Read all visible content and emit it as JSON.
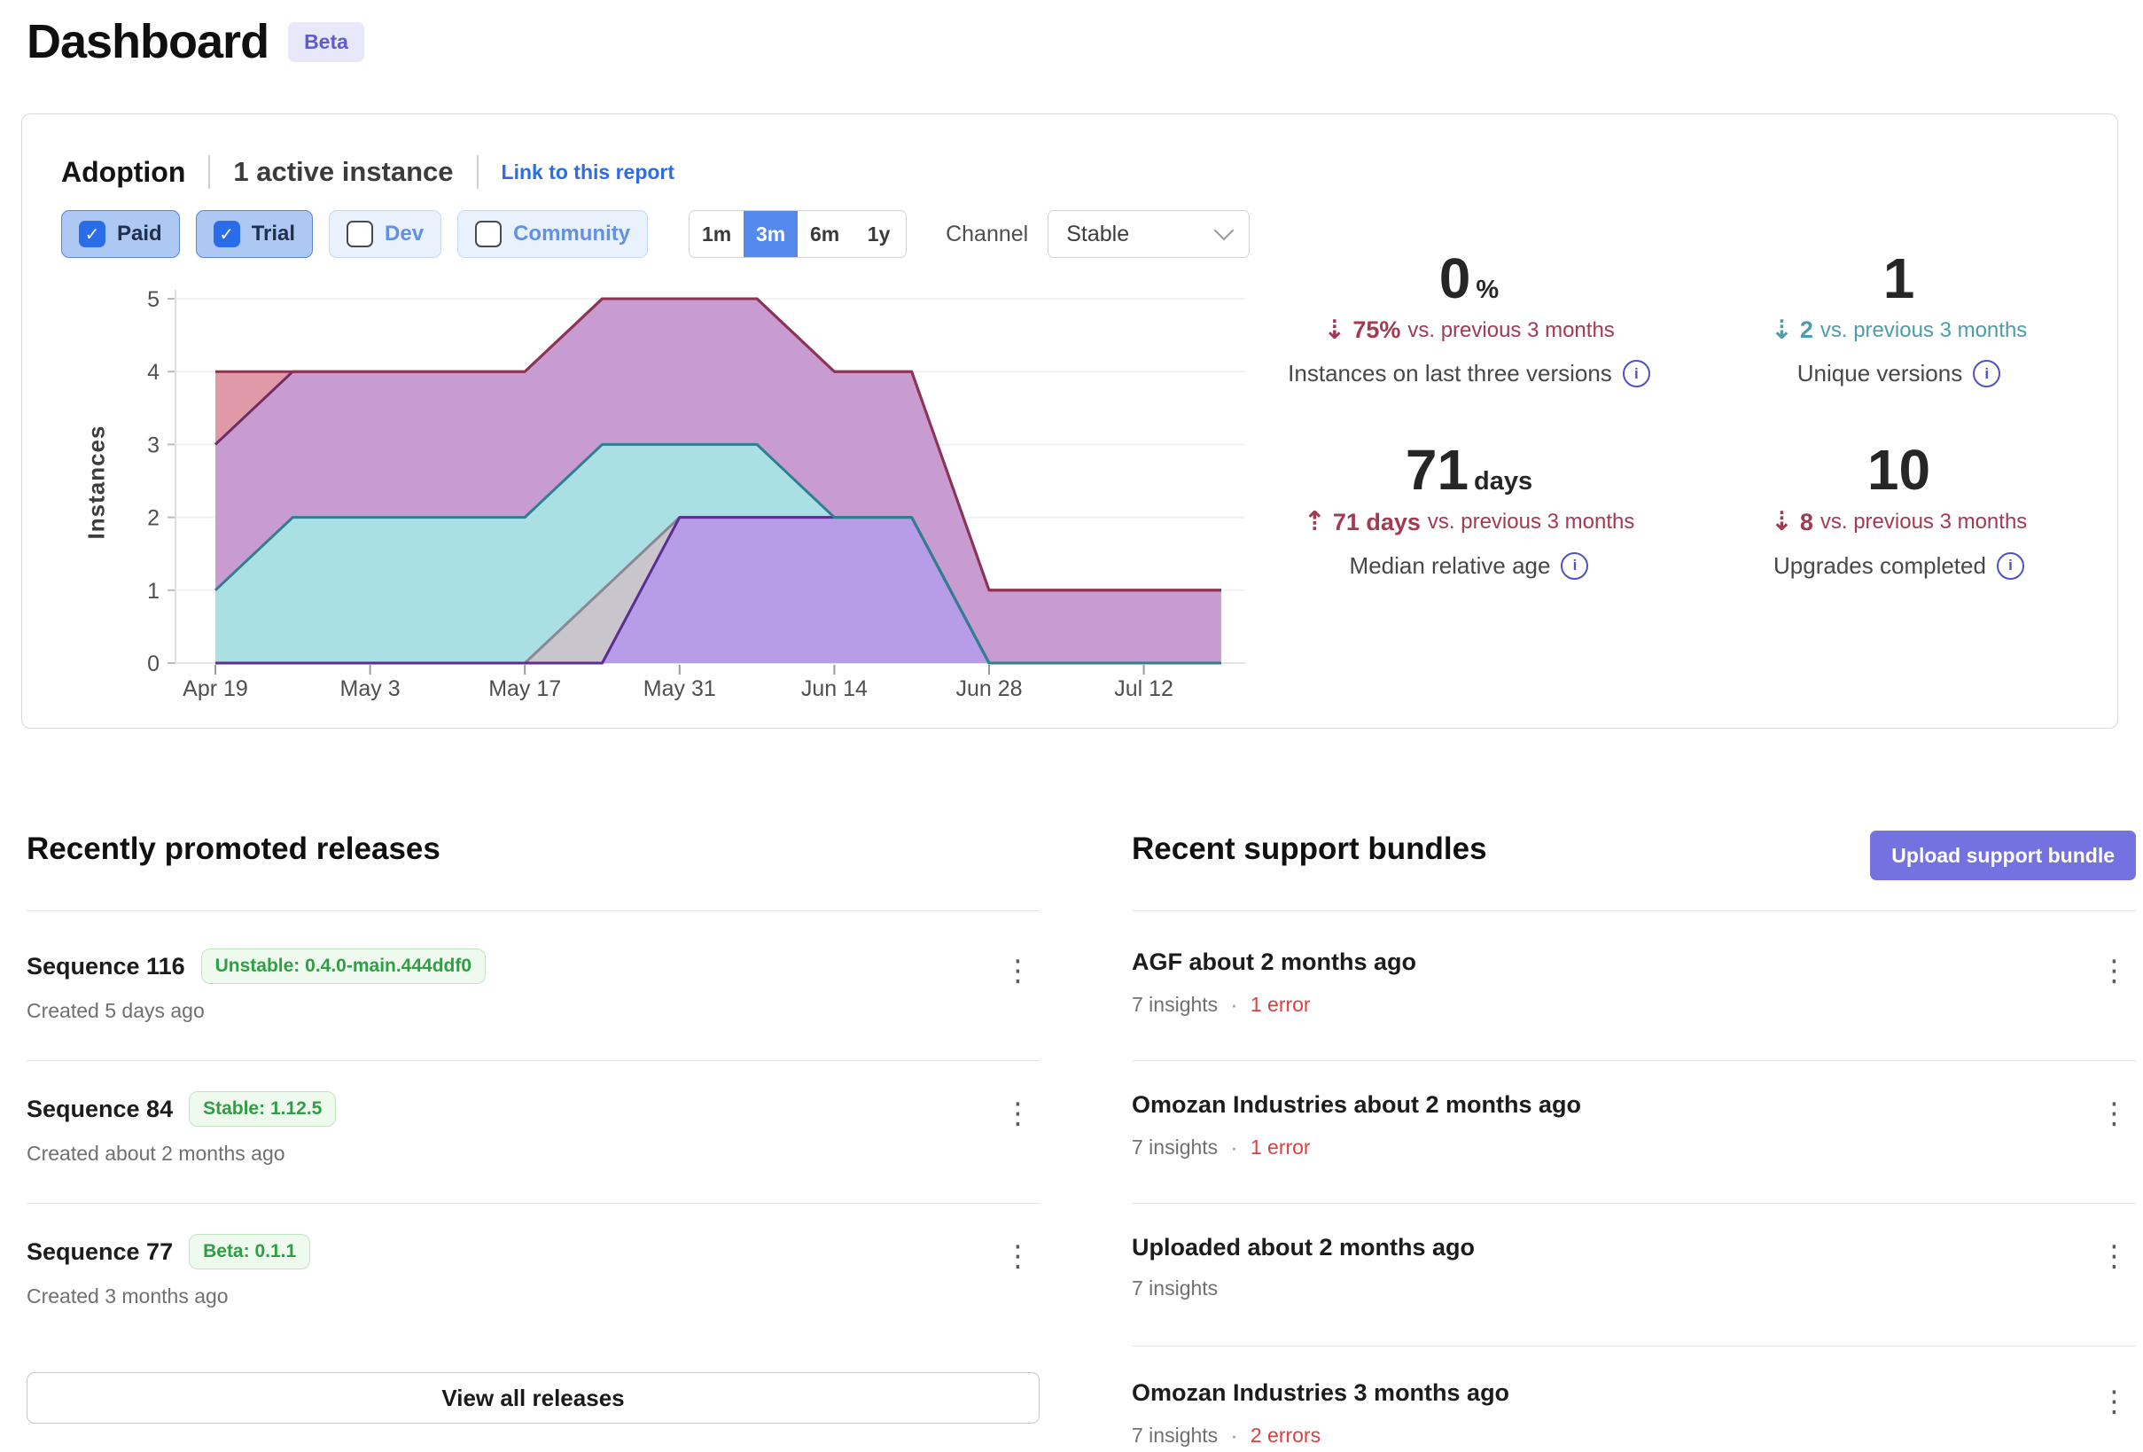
{
  "page": {
    "title": "Dashboard",
    "beta_badge": "Beta"
  },
  "adoption": {
    "title": "Adoption",
    "active_instances": "1 active instance",
    "report_link": "Link to this report",
    "filters": [
      {
        "label": "Paid",
        "checked": true
      },
      {
        "label": "Trial",
        "checked": true
      },
      {
        "label": "Dev",
        "checked": false
      },
      {
        "label": "Community",
        "checked": false
      }
    ],
    "time_ranges": {
      "options": [
        "1m",
        "3m",
        "6m",
        "1y"
      ],
      "selected": "3m"
    },
    "channel": {
      "label": "Channel",
      "value": "Stable"
    },
    "stats": [
      {
        "value": "0",
        "unit": "%",
        "delta_direction": "down",
        "delta": "75%",
        "delta_note": "vs. previous 3 months",
        "delta_color": "#a23a52",
        "label": "Instances on last three versions"
      },
      {
        "value": "1",
        "unit": "",
        "delta_direction": "down",
        "delta": "2",
        "delta_note": "vs. previous 3 months",
        "delta_color": "#4c9dab",
        "label": "Unique versions"
      },
      {
        "value": "71",
        "unit": "days",
        "delta_direction": "up",
        "delta": "71 days",
        "delta_note": "vs. previous 3 months",
        "delta_color": "#a23a52",
        "label": "Median relative age"
      },
      {
        "value": "10",
        "unit": "",
        "delta_direction": "down",
        "delta": "8",
        "delta_note": "vs. previous 3 months",
        "delta_color": "#a23a52",
        "label": "Upgrades completed"
      }
    ]
  },
  "chart_data": {
    "type": "area",
    "stacked": true,
    "title": "",
    "xlabel": "",
    "ylabel": "Instances",
    "ylim": [
      0,
      5
    ],
    "grid": true,
    "legend": "none",
    "x": [
      "Apr 19",
      "Apr 26",
      "May 3",
      "May 10",
      "May 17",
      "May 24",
      "May 31",
      "Jun 7",
      "Jun 14",
      "Jun 21",
      "Jun 28",
      "Jul 5",
      "Jul 12",
      "Jul 19"
    ],
    "x_tick_labels": [
      "Apr 19",
      "May 3",
      "May 17",
      "May 31",
      "Jun 14",
      "Jun 28",
      "Jul 12"
    ],
    "series": [
      {
        "name": "version-band-violet",
        "color": "#b79ce8",
        "line": "#5c2e91",
        "values": [
          0,
          0,
          0,
          0,
          0,
          0,
          2,
          2,
          2,
          2,
          0,
          0,
          0,
          0
        ]
      },
      {
        "name": "version-band-gray",
        "color": "#c9c5cd",
        "line": "#8b8795",
        "values": [
          0,
          0,
          0,
          0,
          0,
          1,
          0,
          0,
          0,
          0,
          0,
          0,
          0,
          0
        ]
      },
      {
        "name": "version-band-teal",
        "color": "#aadfe3",
        "line": "#2f808f",
        "values": [
          1,
          2,
          2,
          2,
          2,
          2,
          1,
          1,
          0,
          0,
          0,
          0,
          0,
          0
        ]
      },
      {
        "name": "version-band-mauve",
        "color": "#c89bd1",
        "line": "#702c68",
        "values": [
          2,
          2,
          2,
          2,
          2,
          2,
          2,
          2,
          2,
          2,
          1,
          1,
          1,
          1
        ]
      },
      {
        "name": "version-band-salmon",
        "color": "#e09aa7",
        "line": "#8e3352",
        "values": [
          1,
          0,
          0,
          0,
          0,
          0,
          0,
          0,
          0,
          0,
          0,
          0,
          0,
          0
        ]
      }
    ],
    "stroke_order": [
      1,
      0,
      2,
      3,
      4
    ]
  },
  "releases": {
    "heading": "Recently promoted releases",
    "items": [
      {
        "title": "Sequence 116",
        "badge": "Unstable: 0.4.0-main.444ddf0",
        "created": "Created 5 days ago"
      },
      {
        "title": "Sequence 84",
        "badge": "Stable: 1.12.5",
        "created": "Created about 2 months ago"
      },
      {
        "title": "Sequence 77",
        "badge": "Beta: 0.1.1",
        "created": "Created 3 months ago"
      }
    ],
    "view_all_label": "View all releases"
  },
  "bundles": {
    "heading": "Recent support bundles",
    "upload_button": "Upload support bundle",
    "items": [
      {
        "title": "AGF about 2 months ago",
        "insights": "7 insights",
        "errors": "1 error"
      },
      {
        "title": "Omozan Industries about 2 months ago",
        "insights": "7 insights",
        "errors": "1 error"
      },
      {
        "title": "Uploaded about 2 months ago",
        "insights": "7 insights",
        "errors": ""
      },
      {
        "title": "Omozan Industries 3 months ago",
        "insights": "7 insights",
        "errors": "2 errors"
      }
    ]
  }
}
